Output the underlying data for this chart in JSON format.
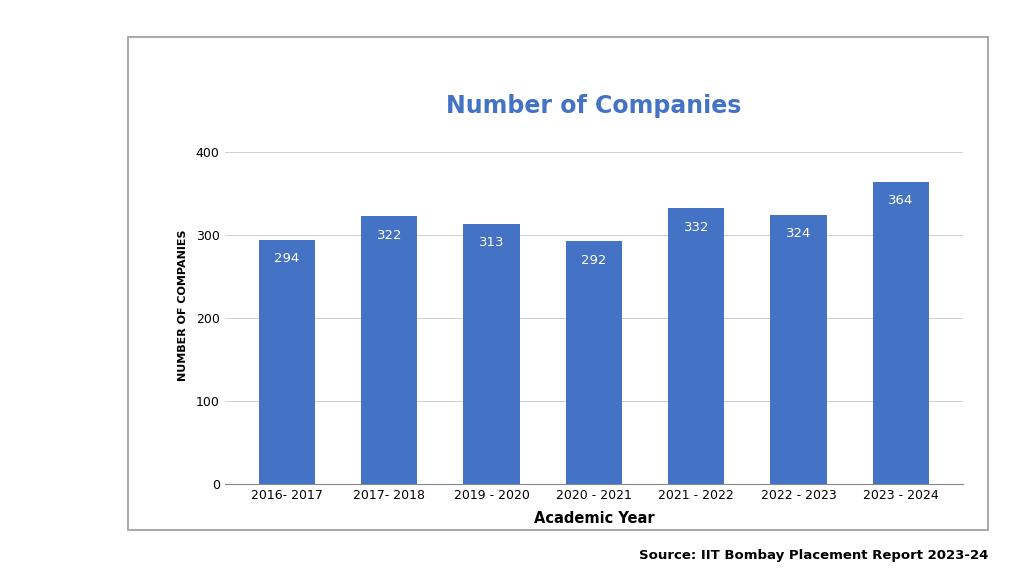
{
  "categories": [
    "2016- 2017",
    "2017- 2018",
    "2019 - 2020",
    "2020 - 2021",
    "2021 - 2022",
    "2022 - 2023",
    "2023 - 2024"
  ],
  "values": [
    294,
    322,
    313,
    292,
    332,
    324,
    364
  ],
  "bar_color": "#4472C4",
  "title": "Number of Companies",
  "title_color": "#4472C4",
  "xlabel": "Academic Year",
  "ylabel": "NUMBER OF COMPANIES",
  "ylim": [
    0,
    430
  ],
  "yticks": [
    0,
    100,
    200,
    300,
    400
  ],
  "label_color": "#ffffff",
  "label_fontsize": 9.5,
  "title_fontsize": 17,
  "xlabel_fontsize": 10.5,
  "ylabel_fontsize": 8,
  "tick_fontsize": 9,
  "source_text": "Source: IIT Bombay Placement Report 2023-24",
  "bg_color": "#ffffff",
  "chart_bg": "#ffffff",
  "grid_color": "#d0d0d0",
  "box_color": "#999999"
}
